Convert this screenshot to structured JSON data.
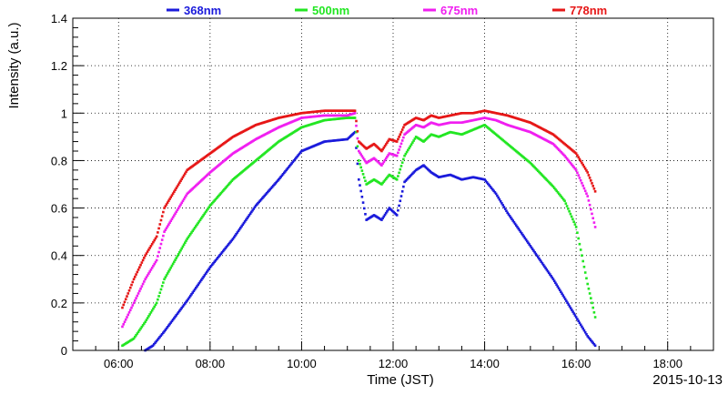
{
  "chart_data": {
    "type": "scatter",
    "title": "",
    "xlabel": "Time (JST)",
    "ylabel": "Intensity (a.u.)",
    "date_label": "2015-10-13",
    "xlim": [
      "05:00",
      "19:00"
    ],
    "ylim": [
      0,
      1.4
    ],
    "x_ticks": [
      "06:00",
      "08:00",
      "10:00",
      "12:00",
      "14:00",
      "16:00",
      "18:00"
    ],
    "y_ticks": [
      "0",
      "0.2",
      "0.4",
      "0.6",
      "0.8",
      "1",
      "1.2",
      "1.4"
    ],
    "grid": true,
    "legend_position": "top",
    "series": [
      {
        "name": "368nm",
        "color": "#1a1adb",
        "x": [
          "06:35",
          "06:45",
          "07:00",
          "07:30",
          "08:00",
          "08:30",
          "09:00",
          "09:30",
          "10:00",
          "10:30",
          "11:00",
          "11:10",
          "11:15",
          "11:25",
          "11:35",
          "11:45",
          "11:55",
          "12:05",
          "12:15",
          "12:30",
          "12:40",
          "12:50",
          "13:00",
          "13:15",
          "13:30",
          "13:45",
          "14:00",
          "14:15",
          "14:30",
          "15:00",
          "15:30",
          "16:00",
          "16:15",
          "16:25"
        ],
        "y": [
          0.0,
          0.02,
          0.08,
          0.21,
          0.35,
          0.47,
          0.61,
          0.72,
          0.84,
          0.88,
          0.89,
          0.92,
          0.72,
          0.55,
          0.57,
          0.55,
          0.6,
          0.57,
          0.71,
          0.76,
          0.78,
          0.75,
          0.73,
          0.74,
          0.72,
          0.73,
          0.72,
          0.66,
          0.58,
          0.44,
          0.3,
          0.14,
          0.06,
          0.02
        ]
      },
      {
        "name": "500nm",
        "color": "#22e622",
        "x": [
          "06:05",
          "06:20",
          "06:35",
          "06:50",
          "07:00",
          "07:30",
          "08:00",
          "08:30",
          "09:00",
          "09:30",
          "10:00",
          "10:30",
          "11:00",
          "11:10",
          "11:15",
          "11:25",
          "11:35",
          "11:45",
          "11:55",
          "12:05",
          "12:15",
          "12:30",
          "12:40",
          "12:50",
          "13:00",
          "13:15",
          "13:30",
          "13:45",
          "14:00",
          "14:15",
          "14:30",
          "15:00",
          "15:30",
          "15:45",
          "16:00",
          "16:15",
          "16:25"
        ],
        "y": [
          0.02,
          0.05,
          0.12,
          0.2,
          0.3,
          0.47,
          0.61,
          0.72,
          0.8,
          0.88,
          0.94,
          0.97,
          0.98,
          0.98,
          0.8,
          0.7,
          0.72,
          0.7,
          0.74,
          0.72,
          0.82,
          0.9,
          0.88,
          0.91,
          0.9,
          0.92,
          0.91,
          0.93,
          0.95,
          0.91,
          0.87,
          0.79,
          0.69,
          0.63,
          0.52,
          0.28,
          0.14
        ]
      },
      {
        "name": "675nm",
        "color": "#f01ef0",
        "x": [
          "06:05",
          "06:20",
          "06:35",
          "06:50",
          "07:00",
          "07:30",
          "08:00",
          "08:30",
          "09:00",
          "09:30",
          "10:00",
          "10:30",
          "11:00",
          "11:10",
          "11:15",
          "11:25",
          "11:35",
          "11:45",
          "11:55",
          "12:05",
          "12:15",
          "12:30",
          "12:40",
          "12:50",
          "13:00",
          "13:15",
          "13:30",
          "13:45",
          "14:00",
          "14:15",
          "14:30",
          "15:00",
          "15:30",
          "15:45",
          "16:00",
          "16:15",
          "16:25"
        ],
        "y": [
          0.1,
          0.2,
          0.3,
          0.38,
          0.5,
          0.66,
          0.75,
          0.83,
          0.89,
          0.94,
          0.98,
          0.99,
          0.99,
          1.0,
          0.84,
          0.79,
          0.81,
          0.78,
          0.83,
          0.82,
          0.91,
          0.95,
          0.94,
          0.96,
          0.95,
          0.96,
          0.96,
          0.97,
          0.98,
          0.97,
          0.95,
          0.92,
          0.87,
          0.82,
          0.76,
          0.65,
          0.52
        ]
      },
      {
        "name": "778nm",
        "color": "#e61717",
        "x": [
          "06:05",
          "06:20",
          "06:35",
          "06:50",
          "07:00",
          "07:30",
          "08:00",
          "08:30",
          "09:00",
          "09:30",
          "10:00",
          "10:30",
          "11:00",
          "11:10",
          "11:15",
          "11:25",
          "11:35",
          "11:45",
          "11:55",
          "12:05",
          "12:15",
          "12:30",
          "12:40",
          "12:50",
          "13:00",
          "13:15",
          "13:30",
          "13:45",
          "14:00",
          "14:15",
          "14:30",
          "15:00",
          "15:30",
          "15:45",
          "16:00",
          "16:15",
          "16:25"
        ],
        "y": [
          0.18,
          0.3,
          0.4,
          0.48,
          0.6,
          0.76,
          0.83,
          0.9,
          0.95,
          0.98,
          1.0,
          1.01,
          1.01,
          1.01,
          0.88,
          0.85,
          0.87,
          0.84,
          0.89,
          0.88,
          0.95,
          0.98,
          0.97,
          0.99,
          0.98,
          0.99,
          1.0,
          1.0,
          1.01,
          1.0,
          0.99,
          0.96,
          0.91,
          0.87,
          0.83,
          0.75,
          0.67
        ]
      }
    ]
  }
}
